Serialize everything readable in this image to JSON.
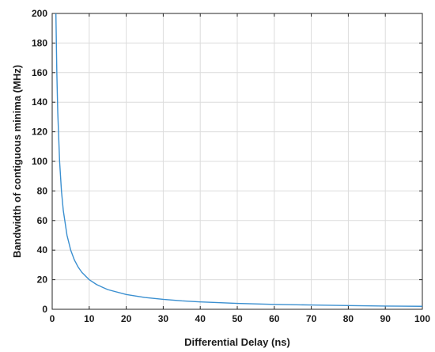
{
  "chart_data": {
    "type": "line",
    "title": "",
    "xlabel": "Differential Delay (ns)",
    "ylabel": "Bandwidth of contiguous minima (MHz)",
    "xlim": [
      0,
      100
    ],
    "ylim": [
      0,
      200
    ],
    "xticks": [
      "0",
      "10",
      "20",
      "30",
      "40",
      "50",
      "60",
      "70",
      "80",
      "90",
      "100"
    ],
    "yticks": [
      "0",
      "20",
      "40",
      "60",
      "80",
      "100",
      "120",
      "140",
      "160",
      "180",
      "200"
    ],
    "grid": true,
    "legend": "none",
    "series": [
      {
        "color": "#3a8fd0",
        "x": [
          1,
          1.25,
          1.5,
          2,
          2.5,
          3,
          4,
          5,
          6,
          7,
          8,
          10,
          12,
          15,
          20,
          25,
          30,
          35,
          40,
          50,
          60,
          70,
          80,
          90,
          100
        ],
        "y": [
          200,
          160,
          133.3,
          100,
          80,
          66.7,
          50,
          40,
          33.3,
          28.6,
          25,
          20,
          16.7,
          13.3,
          10,
          8,
          6.7,
          5.7,
          5,
          4,
          3.3,
          2.9,
          2.5,
          2.2,
          2
        ]
      }
    ]
  }
}
